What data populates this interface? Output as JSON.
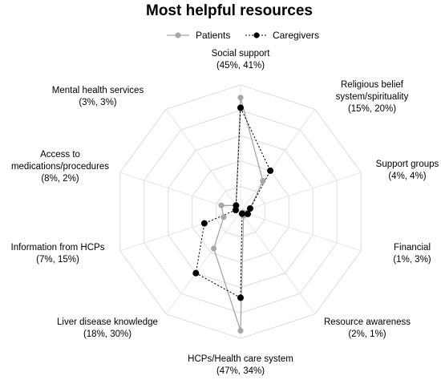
{
  "chart_data": {
    "type": "radar",
    "title": "Most helpful resources",
    "categories": [
      {
        "lines": [
          "Social support",
          "(45%, 41%)"
        ]
      },
      {
        "lines": [
          "Religious belief",
          "system/spirituality",
          "(15%, 20%)"
        ]
      },
      {
        "lines": [
          "Support groups",
          "(4%, 4%)"
        ]
      },
      {
        "lines": [
          "Financial",
          "(1%, 3%)"
        ]
      },
      {
        "lines": [
          "Resource awareness",
          "(2%, 1%)"
        ]
      },
      {
        "lines": [
          "HCPs/Health care system",
          "(47%, 34%)"
        ]
      },
      {
        "lines": [
          "Liver disease knowledge",
          "(18%, 30%)"
        ]
      },
      {
        "lines": [
          "Information from HCPs",
          "(7%, 15%)"
        ]
      },
      {
        "lines": [
          "Access to",
          "medications/procedures",
          "(8%, 2%)"
        ]
      },
      {
        "lines": [
          "Mental health services",
          "(3%, 3%)"
        ]
      }
    ],
    "series": [
      {
        "name": "Patients",
        "values": [
          45,
          15,
          4,
          1,
          2,
          47,
          18,
          7,
          8,
          3
        ],
        "color": "#a6a6a6",
        "line_style": "solid"
      },
      {
        "name": "Caregivers",
        "values": [
          41,
          20,
          4,
          3,
          1,
          34,
          30,
          15,
          2,
          3
        ],
        "color": "#000000",
        "line_style": "dashed"
      }
    ],
    "rmax": 50,
    "grid_levels": 5,
    "grid": true,
    "legend_position": "top-center"
  }
}
